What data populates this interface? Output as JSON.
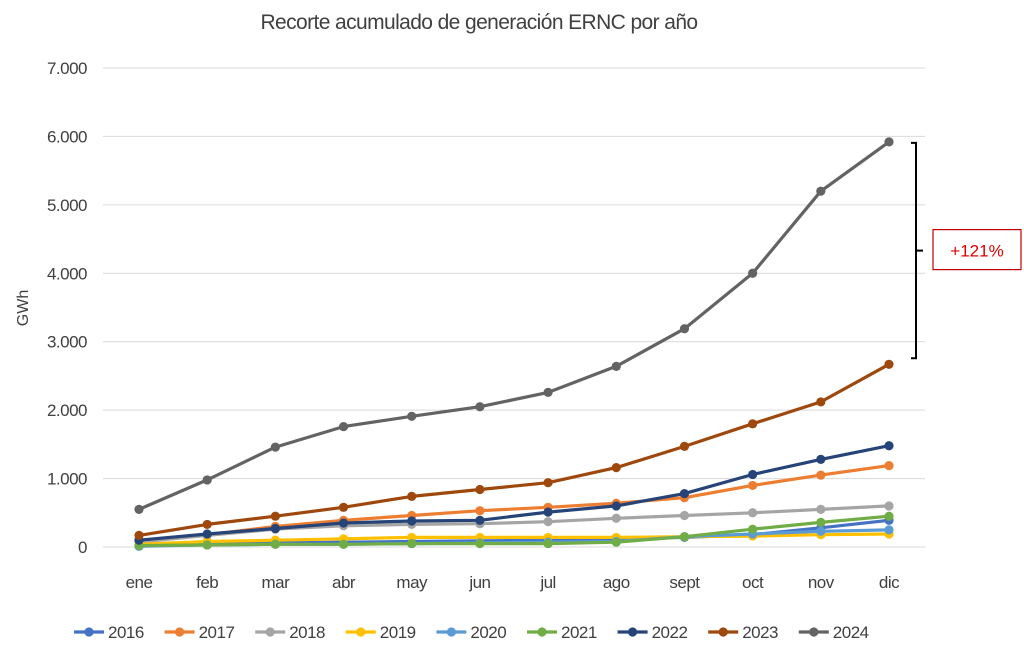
{
  "chart_data": {
    "type": "line",
    "title": "Recorte acumulado de generación ERNC por año",
    "xlabel": "",
    "ylabel": "GWh",
    "categories": [
      "ene",
      "feb",
      "mar",
      "abr",
      "may",
      "jun",
      "jul",
      "ago",
      "sept",
      "oct",
      "nov",
      "dic"
    ],
    "ylim": [
      0,
      7000
    ],
    "yticks": [
      0,
      1000,
      2000,
      3000,
      4000,
      5000,
      6000,
      7000
    ],
    "ytick_labels": [
      "0",
      "1.000",
      "2.000",
      "3.000",
      "4.000",
      "5.000",
      "6.000",
      "7.000"
    ],
    "grid": true,
    "legend_position": "bottom",
    "series": [
      {
        "name": "2016",
        "color": "#4472c4",
        "values": [
          20,
          40,
          60,
          70,
          80,
          90,
          100,
          120,
          140,
          180,
          280,
          390
        ]
      },
      {
        "name": "2017",
        "color": "#ed7d31",
        "values": [
          90,
          180,
          300,
          390,
          460,
          530,
          580,
          640,
          720,
          900,
          1050,
          1190
        ]
      },
      {
        "name": "2018",
        "color": "#a5a5a5",
        "values": [
          70,
          170,
          260,
          310,
          330,
          340,
          370,
          420,
          460,
          500,
          550,
          600
        ]
      },
      {
        "name": "2019",
        "color": "#ffc000",
        "values": [
          40,
          80,
          100,
          120,
          140,
          140,
          140,
          140,
          150,
          160,
          180,
          190
        ]
      },
      {
        "name": "2020",
        "color": "#5b9bd5",
        "values": [
          10,
          30,
          40,
          40,
          50,
          60,
          70,
          80,
          150,
          190,
          230,
          250
        ]
      },
      {
        "name": "2021",
        "color": "#70ad47",
        "values": [
          20,
          30,
          40,
          40,
          50,
          50,
          50,
          70,
          150,
          260,
          360,
          450
        ]
      },
      {
        "name": "2022",
        "color": "#264478",
        "values": [
          100,
          190,
          270,
          350,
          380,
          390,
          510,
          600,
          780,
          1060,
          1280,
          1480
        ]
      },
      {
        "name": "2023",
        "color": "#9e480e",
        "values": [
          170,
          330,
          450,
          580,
          740,
          840,
          940,
          1160,
          1470,
          1800,
          2120,
          2670
        ]
      },
      {
        "name": "2024",
        "color": "#636363",
        "values": [
          550,
          980,
          1460,
          1760,
          1910,
          2050,
          2260,
          2640,
          3190,
          4000,
          5200,
          5920
        ]
      }
    ],
    "annotation": {
      "text": "+121%",
      "from_value": 2670,
      "to_value": 5920,
      "color": "#ff0000"
    }
  }
}
